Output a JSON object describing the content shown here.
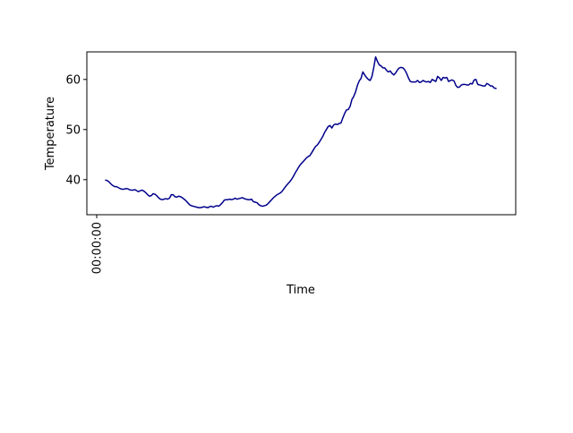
{
  "chart_data": {
    "type": "line",
    "xlabel": "Time",
    "ylabel": "Temperature",
    "x_tick_labels": [
      "00:00:00"
    ],
    "y_ticks": [
      40,
      50,
      60
    ],
    "ylim": [
      33,
      65.5
    ],
    "grid": false,
    "line_color": "#00008b",
    "series": [
      {
        "values": [
          39.9,
          39.8,
          39.5,
          39.1,
          38.8,
          38.6,
          38.6,
          38.4,
          38.2,
          38.1,
          38.1,
          38.2,
          38.2,
          38.0,
          37.9,
          37.9,
          38.0,
          37.8,
          37.6,
          37.8,
          37.9,
          37.7,
          37.4,
          37.0,
          36.7,
          36.8,
          37.2,
          37.1,
          36.8,
          36.4,
          36.1,
          36.0,
          36.1,
          36.2,
          36.1,
          36.3,
          37.0,
          37.0,
          36.6,
          36.5,
          36.7,
          36.6,
          36.4,
          36.1,
          35.8,
          35.4,
          35.0,
          34.8,
          34.7,
          34.6,
          34.5,
          34.4,
          34.4,
          34.5,
          34.6,
          34.5,
          34.4,
          34.6,
          34.7,
          34.5,
          34.7,
          34.8,
          34.7,
          35.0,
          35.4,
          35.9,
          36.0,
          36.0,
          36.1,
          36.0,
          36.1,
          36.3,
          36.1,
          36.2,
          36.3,
          36.4,
          36.2,
          36.1,
          36.0,
          36.0,
          36.1,
          35.6,
          35.5,
          35.4,
          35.0,
          34.8,
          34.7,
          34.8,
          34.9,
          35.2,
          35.6,
          36.0,
          36.4,
          36.7,
          37.0,
          37.2,
          37.4,
          37.8,
          38.3,
          38.8,
          39.2,
          39.6,
          40.1,
          40.7,
          41.4,
          42.0,
          42.6,
          43.1,
          43.5,
          43.9,
          44.3,
          44.6,
          44.8,
          45.4,
          46.0,
          46.6,
          46.9,
          47.4,
          48.0,
          48.6,
          49.4,
          50.0,
          50.6,
          50.8,
          50.3,
          50.9,
          51.1,
          51.0,
          51.2,
          51.3,
          52.3,
          53.2,
          53.9,
          54.0,
          54.6,
          56.0,
          56.6,
          57.5,
          58.8,
          59.7,
          60.2,
          61.5,
          60.9,
          60.4,
          60.0,
          59.8,
          60.6,
          62.4,
          64.5,
          63.6,
          62.9,
          62.7,
          62.3,
          62.3,
          61.8,
          61.5,
          61.7,
          61.2,
          60.9,
          61.3,
          61.9,
          62.3,
          62.4,
          62.3,
          61.9,
          61.2,
          60.3,
          59.6,
          59.5,
          59.5,
          59.5,
          59.8,
          59.4,
          59.5,
          59.8,
          59.6,
          59.5,
          59.6,
          59.4,
          60.0,
          59.8,
          59.6,
          60.6,
          60.3,
          59.8,
          60.4,
          60.3,
          60.4,
          59.6,
          59.8,
          59.9,
          59.7,
          58.8,
          58.4,
          58.5,
          58.9,
          59.0,
          59.0,
          58.9,
          58.9,
          59.2,
          59.1,
          59.9,
          60.0,
          59.0,
          58.9,
          58.8,
          58.7,
          58.7,
          59.2,
          59.0,
          58.7,
          58.7,
          58.3,
          58.2
        ]
      }
    ]
  }
}
